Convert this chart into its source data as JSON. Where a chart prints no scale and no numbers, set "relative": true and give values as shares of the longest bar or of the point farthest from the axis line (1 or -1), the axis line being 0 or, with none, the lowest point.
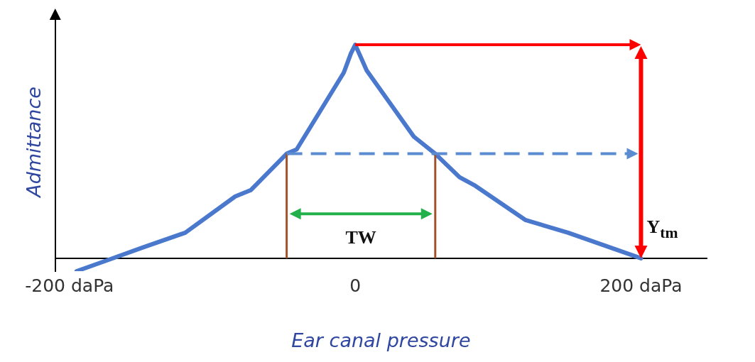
{
  "chart_data": {
    "type": "line",
    "relative": true,
    "xlabel": "Ear canal pressure",
    "ylabel": "Admittance",
    "x": [
      -195,
      -174,
      -149,
      -119,
      -84,
      -73,
      -48,
      -41,
      -8,
      -3,
      0,
      8,
      41,
      56,
      73,
      84,
      119,
      149,
      200
    ],
    "series": [
      {
        "color": "#4a78cc",
        "values": [
          -0.06,
          -0.01,
          0.05,
          0.12,
          0.29,
          0.32,
          0.49,
          0.51,
          0.87,
          0.96,
          1,
          0.88,
          0.57,
          0.49,
          0.38,
          0.34,
          0.18,
          0.12,
          0
        ]
      }
    ],
    "xlim": [
      -210,
      246
    ],
    "xticks": [
      {
        "value": -200,
        "label": "-200 daPa"
      },
      0,
      {
        "value": 200,
        "label": "200 daPa"
      }
    ],
    "annotations": [
      "TW",
      "Y$_{tm}$"
    ],
    "grid": false,
    "legend": false,
    "marker": "none",
    "line_style": "solid"
  }
}
